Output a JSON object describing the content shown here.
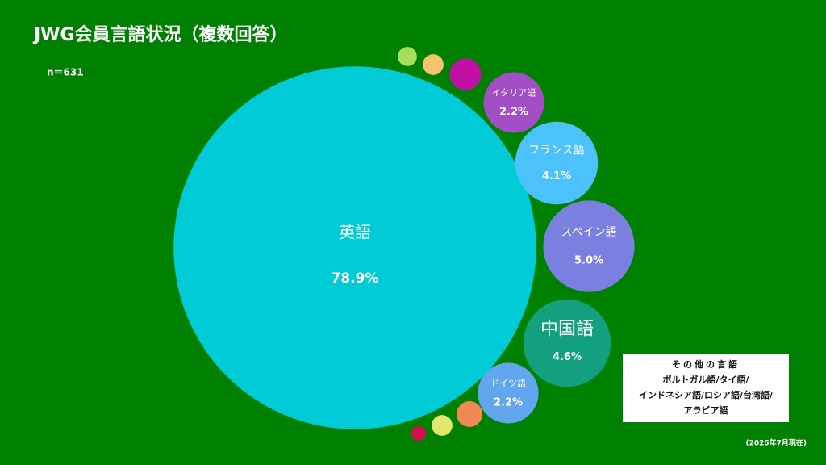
{
  "chart_data": {
    "type": "bubble",
    "title": "JWG会員言語状況（複数回答）",
    "subtitle": "n＝631",
    "categories": [
      "英語",
      null,
      null,
      null,
      "イタリア語",
      "フランス語",
      "スペイン語",
      "中国語",
      "ドイツ語",
      null,
      null,
      null
    ],
    "values": [
      78.9,
      0.22,
      0.26,
      0.6,
      2.2,
      4.1,
      5.0,
      4.6,
      2.2,
      0.4,
      0.26,
      0.13
    ],
    "value_labels": [
      "78.9%",
      null,
      null,
      null,
      "2.2%",
      "4.1%",
      "5.0%",
      "4.6%",
      "2.2%",
      null,
      null,
      null
    ],
    "colors": [
      "#00cbd6",
      "#a6e05a",
      "#f6c46e",
      "#c010a6",
      "#a24fc6",
      "#4cc2fb",
      "#7b7fe0",
      "#12a07e",
      "#62a6ee",
      "#f08a52",
      "#e2e86c",
      "#d0124c"
    ],
    "note": {
      "title": "その他の言語",
      "lines": [
        "ポルトガル語/タイ語/",
        "インドネシア語/ロシア語/台湾語/",
        "アラビア語"
      ]
    },
    "date_note": "(2025年7月現在)"
  }
}
